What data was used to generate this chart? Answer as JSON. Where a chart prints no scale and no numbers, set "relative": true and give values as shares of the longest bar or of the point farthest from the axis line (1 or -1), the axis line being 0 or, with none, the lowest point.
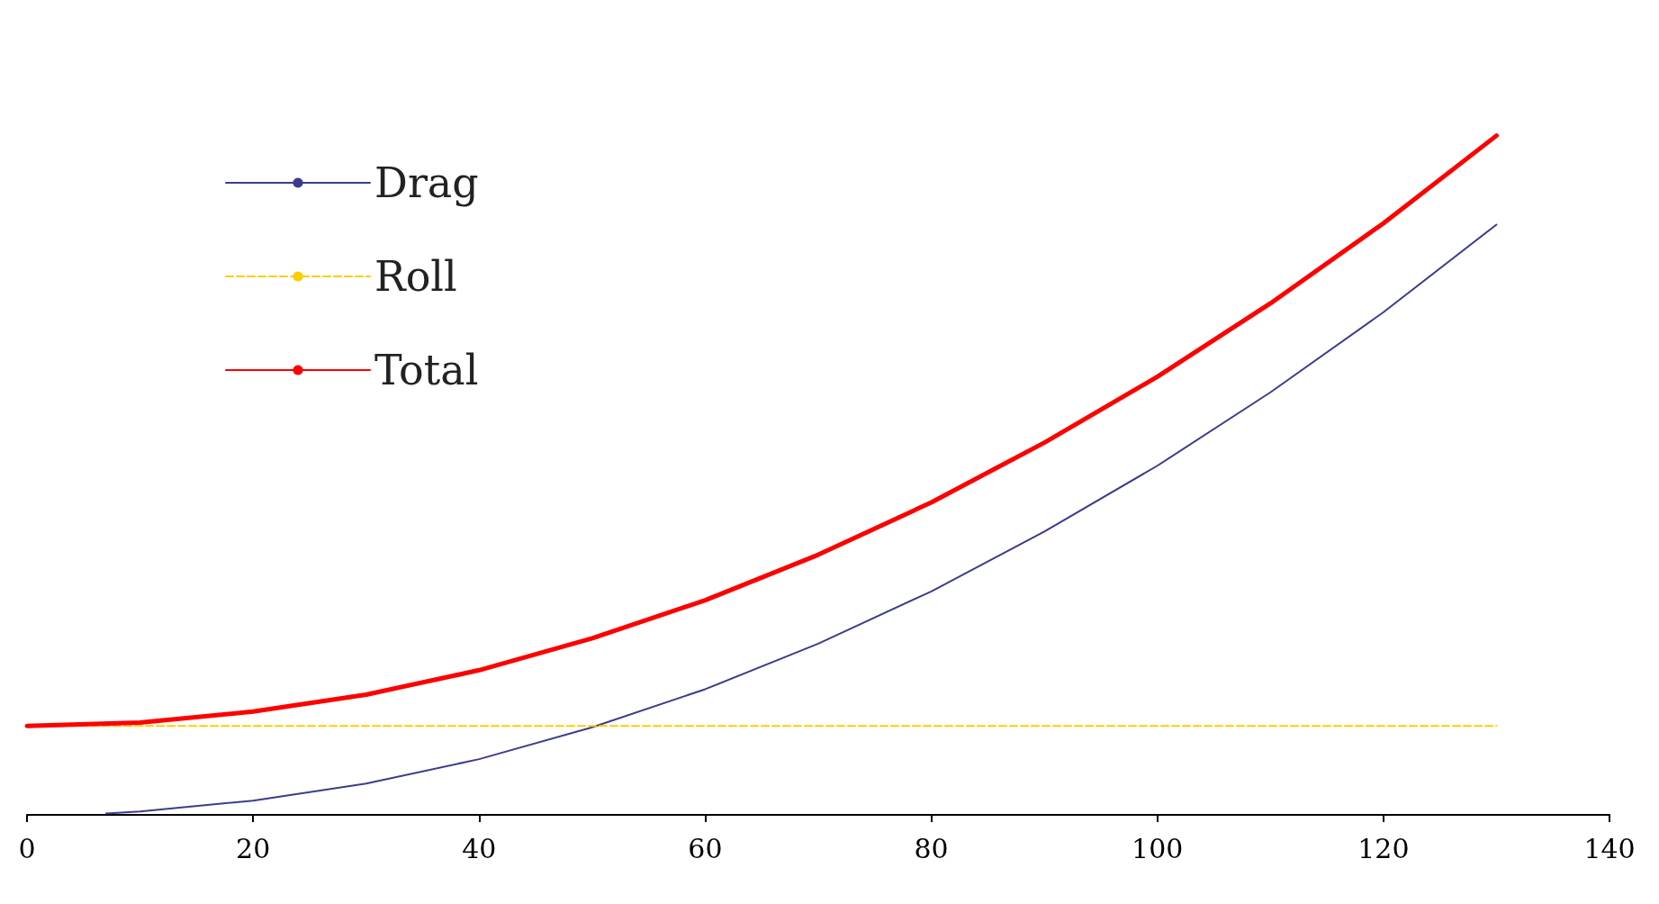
{
  "chart_data": {
    "type": "line",
    "relative": true,
    "xlim": [
      0,
      140
    ],
    "xticks": [
      0,
      20,
      40,
      60,
      80,
      100,
      120,
      140
    ],
    "legend": "top left",
    "grid": false,
    "marker": "none",
    "series": [
      {
        "name": "Drag",
        "color": "#3c3c8c",
        "line_style": "solid",
        "x": [
          7,
          10,
          20,
          30,
          40,
          50,
          60,
          70,
          80,
          90,
          100,
          110,
          120,
          130
        ],
        "values": [
          0.002,
          0.005,
          0.021,
          0.046,
          0.082,
          0.129,
          0.185,
          0.252,
          0.329,
          0.417,
          0.514,
          0.622,
          0.74,
          0.869
        ]
      },
      {
        "name": "Roll",
        "color": "#ffcc00",
        "line_style": "dashed",
        "x": [
          0,
          130
        ],
        "values": [
          0.131,
          0.131
        ]
      },
      {
        "name": "Total",
        "color": "#ff0000",
        "line_style": "solid",
        "x": [
          0,
          10,
          20,
          30,
          40,
          50,
          60,
          70,
          80,
          90,
          100,
          110,
          120,
          130
        ],
        "values": [
          0.131,
          0.136,
          0.152,
          0.177,
          0.213,
          0.26,
          0.316,
          0.383,
          0.46,
          0.548,
          0.645,
          0.753,
          0.871,
          1
        ]
      }
    ]
  }
}
